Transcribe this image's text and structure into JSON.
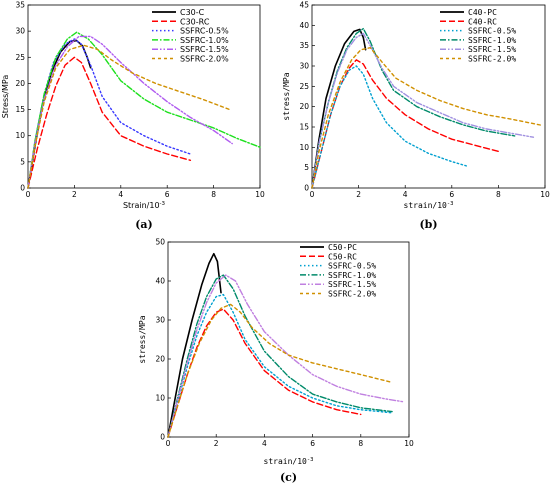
{
  "chart_data": [
    {
      "type": "line",
      "panel_label": "(a)",
      "xlabel": "Strain/10",
      "xlabel_exp": "-3",
      "ylabel": "Stress/MPa",
      "xlim": [
        0,
        10
      ],
      "ylim": [
        0,
        35
      ],
      "xticks": [
        0,
        2,
        4,
        6,
        8,
        10
      ],
      "yticks": [
        0,
        5,
        10,
        15,
        20,
        25,
        30,
        35
      ],
      "legend_position": "top-right",
      "series": [
        {
          "name": "C30-C",
          "color": "#000000",
          "dash": "solid",
          "x": [
            0,
            0.3,
            0.6,
            1.0,
            1.4,
            1.8,
            2.1,
            2.35,
            2.55,
            2.7
          ],
          "y": [
            0,
            8,
            15.5,
            22,
            26,
            28,
            28.2,
            27.2,
            25,
            23
          ]
        },
        {
          "name": "C30-RC",
          "color": "#ff0000",
          "dash": "dashed",
          "x": [
            0,
            0.4,
            0.8,
            1.2,
            1.6,
            2.0,
            2.3,
            2.7,
            3.2,
            4.0,
            5.0,
            6.0,
            7.0
          ],
          "y": [
            0,
            7.5,
            14,
            19.5,
            23.5,
            25,
            24,
            20,
            14.5,
            10,
            8,
            6.5,
            5.3
          ]
        },
        {
          "name": "SSFRC-0.5%",
          "color": "#3a3aff",
          "dash": "dotted",
          "x": [
            0,
            0.3,
            0.7,
            1.1,
            1.6,
            2.0,
            2.3,
            2.7,
            3.2,
            4.0,
            5.0,
            6.0,
            7.0
          ],
          "y": [
            0,
            9,
            18,
            24,
            27.5,
            28.5,
            27.5,
            23.5,
            17.5,
            12.5,
            10,
            8,
            6.5
          ]
        },
        {
          "name": "SSFRC-1.0%",
          "color": "#1ee01e",
          "dash": "dashdot",
          "x": [
            0,
            0.3,
            0.7,
            1.2,
            1.7,
            2.1,
            2.6,
            3.2,
            4.0,
            5.0,
            6.0,
            7.0,
            8.0,
            9.0,
            10.0
          ],
          "y": [
            0,
            9,
            18,
            25,
            28.5,
            29.8,
            28.5,
            25.5,
            20.5,
            17,
            14.5,
            13,
            11.5,
            9.5,
            7.8
          ]
        },
        {
          "name": "SSFRC-1.5%",
          "color": "#b05cf0",
          "dash": "dashdotdot",
          "x": [
            0,
            0.3,
            0.7,
            1.2,
            1.7,
            2.2,
            2.7,
            3.2,
            4.0,
            5.0,
            6.0,
            7.0,
            8.0,
            8.8
          ],
          "y": [
            0,
            8.5,
            17,
            23.5,
            27,
            29,
            29,
            27.5,
            24,
            20,
            16.5,
            13.5,
            11,
            8.5
          ]
        },
        {
          "name": "SSFRC-2.0%",
          "color": "#d09000",
          "dash": "shortdash",
          "x": [
            0,
            0.3,
            0.7,
            1.2,
            1.8,
            2.4,
            3.0,
            3.6,
            4.5,
            5.5,
            6.5,
            7.5,
            8.7
          ],
          "y": [
            0,
            8,
            16.5,
            23,
            26.5,
            27.3,
            26.5,
            24.5,
            22,
            20,
            18.5,
            17,
            15
          ]
        }
      ]
    },
    {
      "type": "line",
      "panel_label": "(b)",
      "xlabel": "strain/10",
      "xlabel_exp": "-3",
      "ylabel": "stress/MPa",
      "xlim": [
        0,
        10
      ],
      "ylim": [
        0,
        45
      ],
      "xticks": [
        0,
        2,
        4,
        6,
        8,
        10
      ],
      "yticks": [
        0,
        5,
        10,
        15,
        20,
        25,
        30,
        35,
        40,
        45
      ],
      "legend_position": "top-right",
      "series": [
        {
          "name": "C40-PC",
          "color": "#000000",
          "dash": "solid",
          "x": [
            0,
            0.3,
            0.6,
            1.0,
            1.4,
            1.8,
            2.05,
            2.2,
            2.3
          ],
          "y": [
            0,
            12,
            22,
            30,
            35.5,
            38.5,
            39,
            37,
            34
          ]
        },
        {
          "name": "C40-RC",
          "color": "#ff0000",
          "dash": "dashed",
          "x": [
            0,
            0.4,
            0.8,
            1.2,
            1.6,
            1.9,
            2.2,
            2.6,
            3.2,
            4.0,
            5.0,
            6.0,
            7.0,
            8.0
          ],
          "y": [
            0,
            9,
            18,
            25,
            29.5,
            31.5,
            30.5,
            26.5,
            22,
            18,
            14.5,
            12,
            10.5,
            9
          ]
        },
        {
          "name": "SSFRC-0.5%",
          "color": "#00a0d0",
          "dash": "dotted",
          "x": [
            0,
            0.4,
            0.8,
            1.2,
            1.6,
            1.9,
            2.2,
            2.6,
            3.2,
            4.0,
            5.0,
            6.0,
            6.7
          ],
          "y": [
            0,
            9,
            18,
            25,
            29,
            30,
            28,
            22,
            16,
            11.5,
            8.5,
            6.5,
            5.3
          ]
        },
        {
          "name": "SSFRC-1.0%",
          "color": "#008a6a",
          "dash": "dashdot",
          "x": [
            0,
            0.3,
            0.7,
            1.1,
            1.5,
            1.9,
            2.2,
            2.5,
            3.0,
            3.5,
            4.5,
            5.5,
            6.5,
            7.5,
            8.7
          ],
          "y": [
            0,
            11,
            21,
            29,
            34.5,
            38,
            39.2,
            36,
            29,
            24,
            20,
            17.5,
            15.5,
            14,
            12.8
          ]
        },
        {
          "name": "SSFRC-1.5%",
          "color": "#a090e0",
          "dash": "dashdotdot",
          "x": [
            0,
            0.3,
            0.7,
            1.1,
            1.5,
            1.9,
            2.2,
            2.5,
            3.0,
            3.5,
            4.5,
            5.5,
            6.5,
            7.5,
            8.5,
            9.5
          ],
          "y": [
            0,
            11,
            21,
            28.5,
            34,
            37,
            38,
            35,
            29.5,
            25,
            21,
            18.5,
            16,
            14.5,
            13.5,
            12.5
          ]
        },
        {
          "name": "SSFRC-2.0%",
          "color": "#d09000",
          "dash": "shortdash",
          "x": [
            0,
            0.3,
            0.7,
            1.2,
            1.7,
            2.1,
            2.5,
            3.0,
            3.6,
            4.5,
            5.5,
            6.5,
            7.5,
            8.5,
            9.8
          ],
          "y": [
            0,
            9,
            18,
            26,
            31.5,
            34,
            34.5,
            31,
            27,
            24,
            21.5,
            19.5,
            18,
            17,
            15.5
          ]
        }
      ]
    },
    {
      "type": "line",
      "panel_label": "(c)",
      "xlabel": "strain/10",
      "xlabel_exp": "-3",
      "ylabel": "stress/MPa",
      "xlim": [
        0,
        10
      ],
      "ylim": [
        0,
        50
      ],
      "xticks": [
        0,
        2,
        4,
        6,
        8,
        10
      ],
      "yticks": [
        0,
        10,
        20,
        30,
        40,
        50
      ],
      "legend_position": "top-right",
      "series": [
        {
          "name": "C50-PC",
          "color": "#000000",
          "dash": "solid",
          "x": [
            0,
            0.3,
            0.6,
            1.0,
            1.4,
            1.7,
            1.9,
            2.05,
            2.2
          ],
          "y": [
            0,
            10,
            20,
            30,
            39,
            44.5,
            47,
            45,
            37
          ]
        },
        {
          "name": "C50-RC",
          "color": "#ff0000",
          "dash": "dashed",
          "x": [
            0,
            0.4,
            0.8,
            1.2,
            1.6,
            2.0,
            2.3,
            2.7,
            3.2,
            4.0,
            5.0,
            6.0,
            7.0,
            8.0
          ],
          "y": [
            0,
            8,
            16,
            23,
            28.5,
            32,
            32.8,
            30,
            24,
            17,
            12,
            9,
            7,
            5.8
          ]
        },
        {
          "name": "SSFRC-0.5%",
          "color": "#00a0d0",
          "dash": "dotted",
          "x": [
            0,
            0.4,
            0.8,
            1.2,
            1.6,
            2.0,
            2.3,
            2.7,
            3.2,
            4.0,
            5.0,
            6.0,
            7.0,
            8.0,
            9.3
          ],
          "y": [
            0,
            9,
            18,
            26,
            32,
            36,
            36.5,
            32,
            25,
            18,
            13,
            10,
            8,
            7,
            6.2
          ]
        },
        {
          "name": "SSFRC-1.0%",
          "color": "#008a6a",
          "dash": "dashdot",
          "x": [
            0,
            0.4,
            0.8,
            1.2,
            1.6,
            2.0,
            2.3,
            2.7,
            3.2,
            4.0,
            5.0,
            6.0,
            7.0,
            8.0,
            9.3
          ],
          "y": [
            0,
            10,
            20,
            29,
            36,
            40.5,
            41.5,
            38,
            31,
            22,
            15.5,
            11,
            9,
            7.5,
            6.5
          ]
        },
        {
          "name": "SSFRC-1.5%",
          "color": "#c080e0",
          "dash": "dashdotdot",
          "x": [
            0,
            0.4,
            0.8,
            1.2,
            1.6,
            2.0,
            2.4,
            2.8,
            3.3,
            4.0,
            5.0,
            6.0,
            7.0,
            8.0,
            9.0,
            9.8
          ],
          "y": [
            0,
            9.5,
            19,
            27.5,
            34.5,
            39.5,
            41.5,
            40,
            34,
            27,
            21,
            16,
            13,
            11,
            9.8,
            9
          ]
        },
        {
          "name": "SSFRC-2.0%",
          "color": "#d09000",
          "dash": "shortdash",
          "x": [
            0,
            0.4,
            0.8,
            1.3,
            1.8,
            2.2,
            2.6,
            3.0,
            3.5,
            4.2,
            5.0,
            6.0,
            7.0,
            8.0,
            9.3
          ],
          "y": [
            0,
            8,
            16,
            24,
            30,
            33,
            34,
            32,
            28,
            24,
            21,
            19,
            17.5,
            16,
            14
          ]
        }
      ]
    }
  ]
}
